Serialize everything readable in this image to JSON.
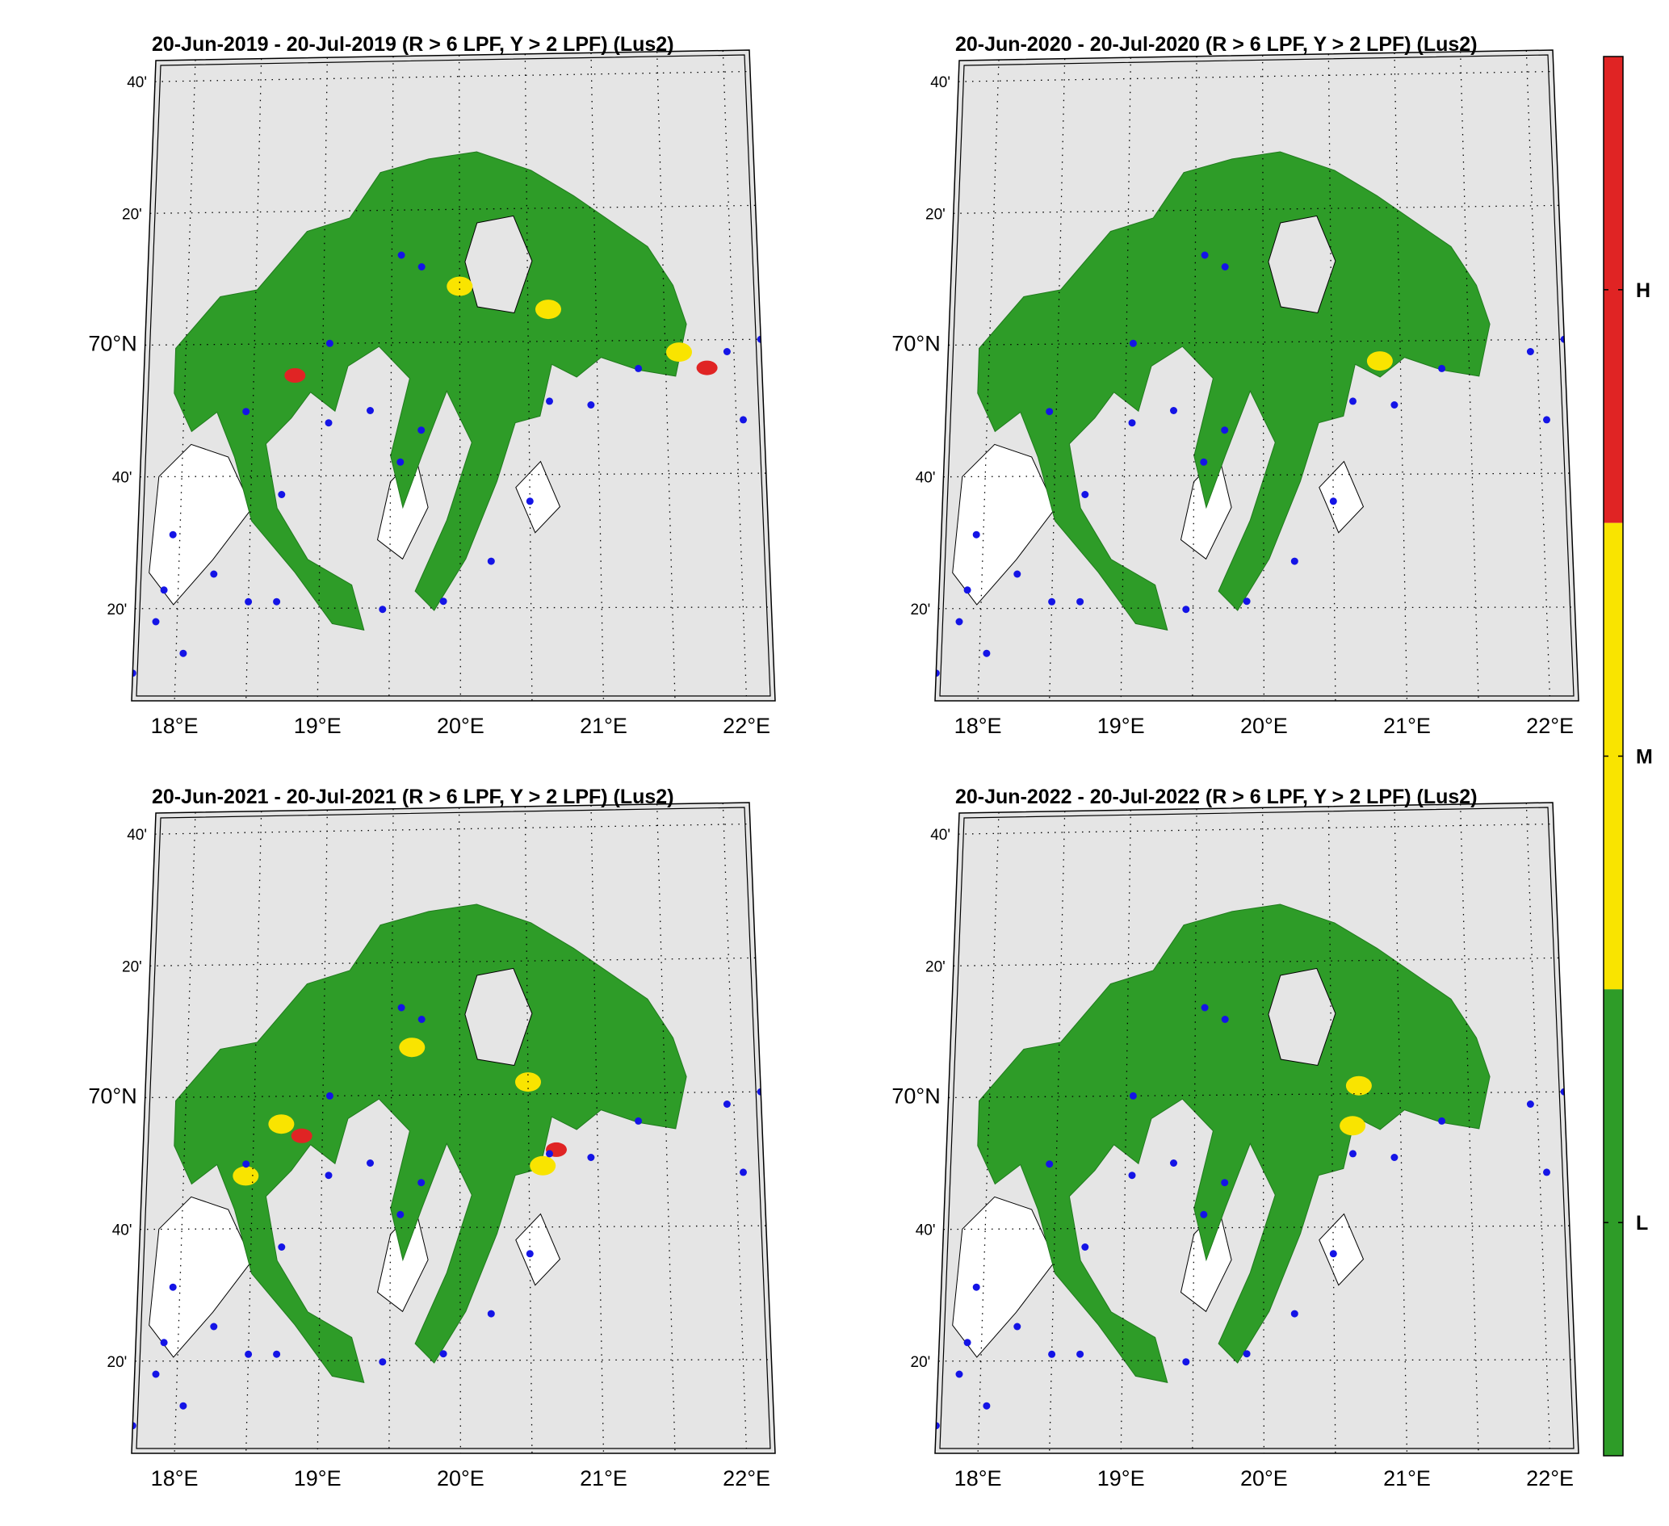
{
  "panels": [
    {
      "title": "20-Jun-2019  - 20-Jul-2019  (R > 6 LPF, Y > 2 LPF) (Lus2)",
      "hotspots": [
        {
          "lon": 21.8,
          "lat": 69.93,
          "level": "H"
        },
        {
          "lon": 21.6,
          "lat": 69.97,
          "level": "M"
        },
        {
          "lon": 18.8,
          "lat": 69.92,
          "level": "H"
        },
        {
          "lon": 20.65,
          "lat": 70.08,
          "level": "M"
        },
        {
          "lon": 20.0,
          "lat": 70.14,
          "level": "M"
        }
      ]
    },
    {
      "title": "20-Jun-2020  - 20-Jul-2020  (R > 6 LPF, Y > 2 LPF) (Lus2)",
      "hotspots": [
        {
          "lon": 20.85,
          "lat": 69.95,
          "level": "M"
        }
      ]
    },
    {
      "title": "20-Jun-2021  - 20-Jul-2021  (R > 6 LPF, Y > 2 LPF) (Lus2)",
      "hotspots": [
        {
          "lon": 18.85,
          "lat": 69.9,
          "level": "H"
        },
        {
          "lon": 18.7,
          "lat": 69.93,
          "level": "M"
        },
        {
          "lon": 20.7,
          "lat": 69.86,
          "level": "H"
        },
        {
          "lon": 20.6,
          "lat": 69.82,
          "level": "M"
        },
        {
          "lon": 19.65,
          "lat": 70.12,
          "level": "M"
        },
        {
          "lon": 20.5,
          "lat": 70.03,
          "level": "M"
        },
        {
          "lon": 18.45,
          "lat": 69.8,
          "level": "M"
        }
      ]
    },
    {
      "title": "20-Jun-2022  - 20-Jul-2022  (R > 6 LPF, Y > 2 LPF) (Lus2)",
      "hotspots": [
        {
          "lon": 20.7,
          "lat": 70.02,
          "level": "M"
        },
        {
          "lon": 20.65,
          "lat": 69.92,
          "level": "M"
        }
      ]
    }
  ],
  "lat_ticks": [
    {
      "label": "40'",
      "lat": 70.6667
    },
    {
      "label": "20'",
      "lat": 70.3333
    },
    {
      "label": "70°N",
      "lat": 70.0
    },
    {
      "label": "40'",
      "lat": 69.6667
    },
    {
      "label": "20'",
      "lat": 69.3333
    }
  ],
  "lon_ticks": [
    {
      "label": "18°E",
      "lon": 18
    },
    {
      "label": "19°E",
      "lon": 19
    },
    {
      "label": "20°E",
      "lon": 20
    },
    {
      "label": "21°E",
      "lon": 21
    },
    {
      "label": "22°E",
      "lon": 22
    }
  ],
  "colorbar": {
    "levels": [
      {
        "label": "H",
        "color": "#e02424"
      },
      {
        "label": "M",
        "color": "#f9e400"
      },
      {
        "label": "L",
        "color": "#2e9c28"
      }
    ]
  },
  "colors": {
    "land": "#e5e5e5",
    "sea": "#ffffff",
    "low_zone": "#2e9c28",
    "medium_zone": "#f9e400",
    "high_zone": "#e02424",
    "farm_site": "#1414e6"
  },
  "farm_sites": [
    {
      "lon": 19.57,
      "lat": 70.22
    },
    {
      "lon": 19.72,
      "lat": 70.19
    },
    {
      "lon": 19.05,
      "lat": 70.0
    },
    {
      "lon": 18.45,
      "lat": 69.83
    },
    {
      "lon": 19.05,
      "lat": 69.8
    },
    {
      "lon": 19.35,
      "lat": 69.83
    },
    {
      "lon": 19.72,
      "lat": 69.78
    },
    {
      "lon": 19.57,
      "lat": 69.7
    },
    {
      "lon": 18.72,
      "lat": 69.62
    },
    {
      "lon": 17.95,
      "lat": 69.52
    },
    {
      "lon": 18.25,
      "lat": 69.42
    },
    {
      "lon": 17.9,
      "lat": 69.38
    },
    {
      "lon": 18.5,
      "lat": 69.35
    },
    {
      "lon": 18.7,
      "lat": 69.35
    },
    {
      "lon": 17.85,
      "lat": 69.3
    },
    {
      "lon": 18.05,
      "lat": 69.22
    },
    {
      "lon": 17.65,
      "lat": 69.18
    },
    {
      "lon": 17.7,
      "lat": 69.17
    },
    {
      "lon": 19.45,
      "lat": 69.33
    },
    {
      "lon": 19.88,
      "lat": 69.35
    },
    {
      "lon": 20.22,
      "lat": 69.45
    },
    {
      "lon": 20.5,
      "lat": 69.6
    },
    {
      "lon": 20.65,
      "lat": 69.85
    },
    {
      "lon": 20.95,
      "lat": 69.84
    },
    {
      "lon": 21.3,
      "lat": 69.93
    },
    {
      "lon": 21.95,
      "lat": 69.97
    },
    {
      "lon": 22.05,
      "lat": 69.8
    },
    {
      "lon": 22.2,
      "lat": 70.0
    }
  ]
}
